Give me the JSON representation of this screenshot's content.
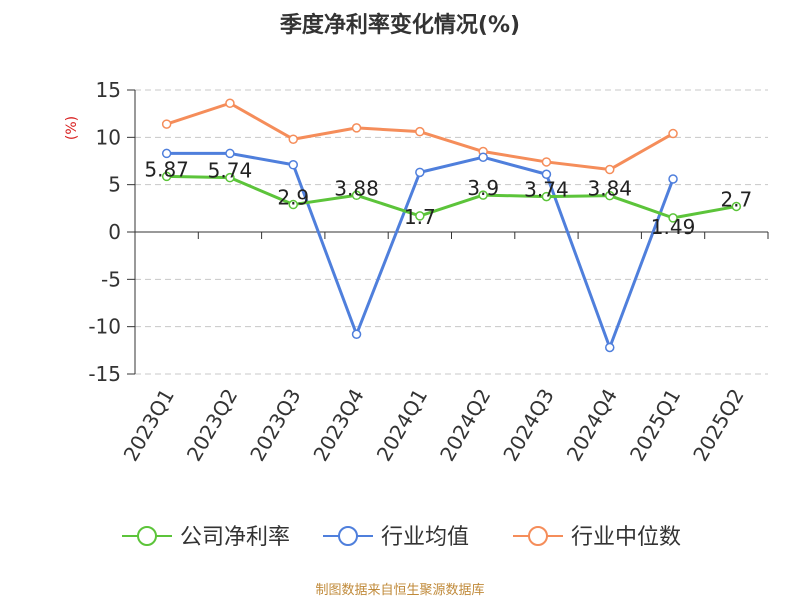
{
  "chart_data": {
    "type": "line",
    "title": "季度净利率变化情况(%)",
    "ylabel": "(%)",
    "ylim": [
      -15,
      15
    ],
    "yticks": [
      15,
      10,
      5,
      0,
      -5,
      -10,
      -15
    ],
    "grid": true,
    "legend_position": "bottom",
    "categories": [
      "2023Q1",
      "2023Q2",
      "2023Q3",
      "2023Q4",
      "2024Q1",
      "2024Q2",
      "2024Q3",
      "2024Q4",
      "2025Q1",
      "2025Q2"
    ],
    "series": [
      {
        "name": "公司净利率",
        "color": "#5cc43a",
        "values": [
          5.87,
          5.74,
          2.9,
          3.88,
          1.7,
          3.9,
          3.74,
          3.84,
          1.49,
          2.7
        ],
        "labels": [
          "5.87",
          "5.74",
          "2.9",
          "3.88",
          "1.7",
          "3.9",
          "3.74",
          "3.84",
          "1.49",
          "2.7"
        ]
      },
      {
        "name": "行业均值",
        "color": "#4f7fdc",
        "values": [
          8.3,
          8.3,
          7.1,
          -10.8,
          6.3,
          7.9,
          6.1,
          -12.2,
          5.6,
          null
        ]
      },
      {
        "name": "行业中位数",
        "color": "#f58d5a",
        "values": [
          11.4,
          13.6,
          9.8,
          11.0,
          10.6,
          8.5,
          7.4,
          6.6,
          10.4,
          null
        ]
      }
    ]
  },
  "footer": "制图数据来自恒生聚源数据库"
}
